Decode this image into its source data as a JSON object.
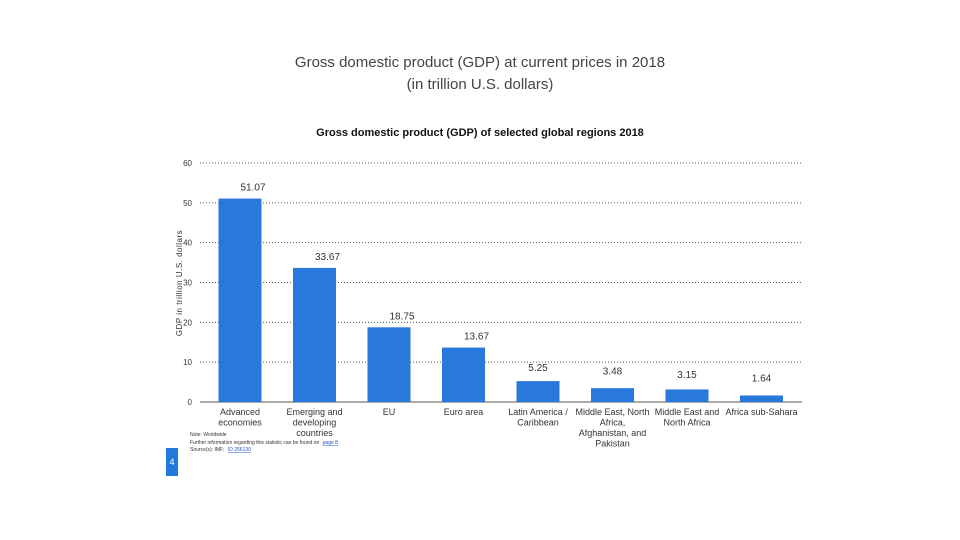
{
  "slide": {
    "title_line1": "Gross domestic product (GDP) at current prices in 2018",
    "title_line2": "(in trillion U.S. dollars)",
    "page_number": "4"
  },
  "chart_data": {
    "type": "bar",
    "title": "Gross domestic product (GDP) of selected global regions 2018",
    "xlabel": "",
    "ylabel": "GDP in trillion U.S. dollars",
    "ylim": [
      0,
      60
    ],
    "yticks": [
      0,
      10,
      20,
      30,
      40,
      50,
      60
    ],
    "grid": true,
    "bar_color": "#2a78db",
    "grid_color": "#555555",
    "categories": [
      [
        "Advanced",
        "economies"
      ],
      [
        "Emerging and",
        "developing",
        "countries"
      ],
      [
        "EU"
      ],
      [
        "Euro area"
      ],
      [
        "Latin America /",
        "Caribbean"
      ],
      [
        "Middle East, North",
        "Africa,",
        "Afghanistan, and",
        "Pakistan"
      ],
      [
        "Middle East and",
        "North Africa"
      ],
      [
        "Africa sub-Sahara"
      ]
    ],
    "values": [
      51.07,
      33.67,
      18.75,
      13.67,
      5.25,
      3.48,
      3.15,
      1.64
    ],
    "value_labels": [
      "51.07",
      "33.67",
      "18.75",
      "13.67",
      "5.25",
      "3.48",
      "3.15",
      "1.64"
    ]
  },
  "footnotes": {
    "note": "Note: Worldwide",
    "further_info": "Further information regarding this statistic can be found on",
    "further_info_link": "page 8",
    "source_prefix": "Source(s): IMF;",
    "source_link": "ID 256130"
  }
}
